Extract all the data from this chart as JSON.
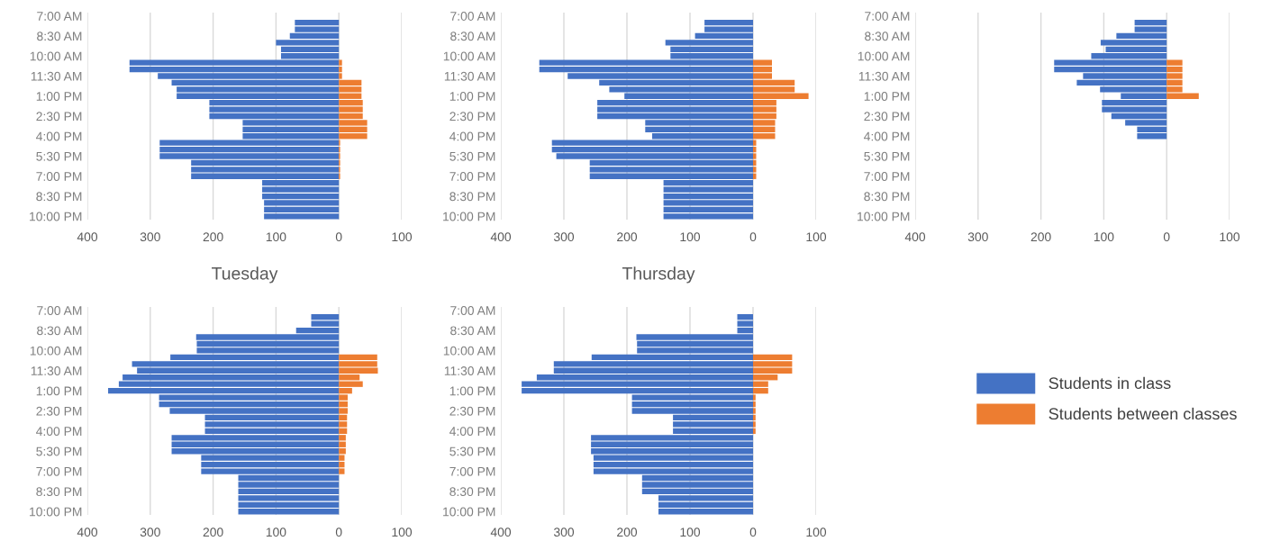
{
  "chart_data": [
    {
      "type": "bar",
      "orientation": "horizontal",
      "stacked": true,
      "categories": [
        "7:00 AM",
        null,
        null,
        "8:30 AM",
        null,
        null,
        "10:00 AM",
        null,
        null,
        "11:30 AM",
        null,
        null,
        "1:00 PM",
        null,
        null,
        "2:30 PM",
        null,
        null,
        "4:00 PM",
        null,
        null,
        "5:30 PM",
        null,
        null,
        "7:00 PM",
        null,
        null,
        "8:30 PM",
        null,
        null,
        "10:00 PM"
      ],
      "series": [
        {
          "color": "#4472c4",
          "values": [
            null,
            -70,
            -70,
            -78,
            -100,
            -92,
            -92,
            -333,
            -333,
            -288,
            -266,
            -258,
            -258,
            -206,
            -206,
            -206,
            -153,
            -153,
            -153,
            -285,
            -285,
            -285,
            -235,
            -235,
            -235,
            -122,
            -122,
            -122,
            -119,
            -119,
            -119
          ]
        },
        {
          "color": "#ed7d31",
          "values": [
            null,
            0,
            0,
            0,
            0,
            0,
            0,
            5,
            5,
            5,
            36,
            36,
            36,
            38,
            38,
            38,
            45,
            45,
            45,
            2,
            2,
            2,
            2,
            2,
            2,
            0,
            0,
            0,
            0,
            0,
            0
          ]
        }
      ],
      "xlim": [
        -400,
        100
      ],
      "xticks": [
        {
          "value": -400,
          "label": "400"
        },
        {
          "value": -300,
          "label": "300"
        },
        {
          "value": -200,
          "label": "200"
        },
        {
          "value": -100,
          "label": "100"
        },
        0,
        100
      ],
      "grid": "x"
    },
    {
      "type": "bar",
      "orientation": "horizontal",
      "categories": [
        "7:00 AM",
        null,
        null,
        "8:30 AM",
        null,
        null,
        "10:00 AM",
        null,
        null,
        "11:30 AM",
        null,
        null,
        "1:00 PM",
        null,
        null,
        "2:30 PM",
        null,
        null,
        "4:00 PM",
        null,
        null,
        "5:30 PM",
        null,
        null,
        "7:00 PM",
        null,
        null,
        "8:30 PM",
        null,
        null,
        "10:00 PM"
      ],
      "series": [
        {
          "color": "#4472c4",
          "values": [
            null,
            -77,
            -77,
            -92,
            -139,
            -131,
            -131,
            -339,
            -339,
            -294,
            -244,
            -228,
            -204,
            -247,
            -247,
            -247,
            -171,
            -171,
            -160,
            -319,
            -319,
            -312,
            -259,
            -259,
            -259,
            -142,
            -142,
            -142,
            -142,
            -142,
            -142
          ]
        },
        {
          "color": "#ed7d31",
          "values": [
            null,
            0,
            0,
            0,
            0,
            0,
            0,
            30,
            30,
            30,
            66,
            66,
            88,
            37,
            37,
            37,
            35,
            35,
            35,
            5,
            5,
            5,
            5,
            5,
            5,
            0,
            0,
            0,
            0,
            0,
            0
          ]
        }
      ],
      "stacked": true,
      "xlim": [
        -400,
        100
      ],
      "xticks": [
        {
          "value": -400,
          "label": "400"
        },
        {
          "value": -300,
          "label": "300"
        },
        {
          "value": -200,
          "label": "200"
        },
        {
          "value": -100,
          "label": "100"
        },
        0,
        100
      ],
      "grid": "x"
    },
    {
      "type": "bar",
      "orientation": "horizontal",
      "categories": [
        "7:00 AM",
        null,
        null,
        "8:30 AM",
        null,
        null,
        "10:00 AM",
        null,
        null,
        "11:30 AM",
        null,
        null,
        "1:00 PM",
        null,
        null,
        "2:30 PM",
        null,
        null,
        "4:00 PM",
        null,
        null,
        "5:30 PM",
        null,
        null,
        "7:00 PM",
        null,
        null,
        "8:30 PM",
        null,
        null,
        "10:00 PM"
      ],
      "series": [
        {
          "color": "#4472c4",
          "values": [
            null,
            -51,
            -51,
            -80,
            -105,
            -97,
            -120,
            -179,
            -179,
            -133,
            -143,
            -106,
            -73,
            -103,
            -103,
            -88,
            -66,
            -47,
            -47,
            null,
            null,
            null,
            null,
            null,
            null,
            null,
            null,
            null,
            null,
            null,
            null
          ]
        },
        {
          "color": "#ed7d31",
          "values": [
            null,
            0,
            0,
            0,
            0,
            0,
            0,
            25,
            25,
            25,
            25,
            25,
            51,
            0,
            0,
            0,
            0,
            0,
            0,
            null,
            null,
            null,
            null,
            null,
            null,
            null,
            null,
            null,
            null,
            null,
            null
          ]
        }
      ],
      "stacked": true,
      "xlim": [
        -400,
        100
      ],
      "xticks": [
        {
          "value": -400,
          "label": "400"
        },
        {
          "value": -300,
          "label": "300"
        },
        {
          "value": -200,
          "label": "200"
        },
        {
          "value": -100,
          "label": "100"
        },
        0,
        100
      ],
      "grid": "x"
    },
    {
      "type": "bar",
      "orientation": "horizontal",
      "stacked": true,
      "title": "Tuesday",
      "categories": [
        "7:00 AM",
        null,
        null,
        "8:30 AM",
        null,
        null,
        "10:00 AM",
        null,
        null,
        "11:30 AM",
        null,
        null,
        "1:00 PM",
        null,
        null,
        "2:30 PM",
        null,
        null,
        "4:00 PM",
        null,
        null,
        "5:30 PM",
        null,
        null,
        "7:00 PM",
        null,
        null,
        "8:30 PM",
        null,
        null,
        "10:00 PM"
      ],
      "series": [
        {
          "color": "#4472c4",
          "values": [
            null,
            -44,
            -44,
            -68,
            -227,
            -226,
            -226,
            -268,
            -329,
            -321,
            -344,
            -350,
            -367,
            -286,
            -286,
            -269,
            -213,
            -213,
            -213,
            -266,
            -266,
            -266,
            -219,
            -219,
            -219,
            -160,
            -160,
            -160,
            -160,
            -160,
            -160
          ]
        },
        {
          "color": "#ed7d31",
          "values": [
            null,
            0,
            0,
            0,
            0,
            0,
            0,
            61,
            61,
            62,
            33,
            38,
            21,
            14,
            14,
            14,
            13,
            13,
            13,
            11,
            11,
            11,
            9,
            9,
            9,
            0,
            0,
            0,
            0,
            0,
            0
          ]
        }
      ],
      "xlim": [
        -400,
        100
      ],
      "xticks": [
        {
          "value": -400,
          "label": "400"
        },
        {
          "value": -300,
          "label": "300"
        },
        {
          "value": -200,
          "label": "200"
        },
        {
          "value": -100,
          "label": "100"
        },
        0,
        100
      ],
      "grid": "x"
    },
    {
      "type": "bar",
      "orientation": "horizontal",
      "stacked": true,
      "title": "Thursday",
      "legend": "right",
      "categories": [
        "7:00 AM",
        null,
        null,
        "8:30 AM",
        null,
        null,
        "10:00 AM",
        null,
        null,
        "11:30 AM",
        null,
        null,
        "1:00 PM",
        null,
        null,
        "2:30 PM",
        null,
        null,
        "4:00 PM",
        null,
        null,
        "5:30 PM",
        null,
        null,
        "7:00 PM",
        null,
        null,
        "8:30 PM",
        null,
        null,
        "10:00 PM"
      ],
      "series": [
        {
          "name": "Students in class",
          "color": "#4472c4",
          "values": [
            null,
            -25,
            -25,
            -25,
            -185,
            -184,
            -184,
            -256,
            -316,
            -316,
            -343,
            -367,
            -367,
            -192,
            -192,
            -192,
            -127,
            -127,
            -127,
            -257,
            -257,
            -257,
            -253,
            -253,
            -253,
            -176,
            -176,
            -176,
            -150,
            -150,
            -150
          ]
        },
        {
          "name": "Students between classes",
          "color": "#ed7d31",
          "values": [
            null,
            0,
            0,
            0,
            0,
            0,
            0,
            62,
            62,
            62,
            39,
            24,
            24,
            4,
            4,
            4,
            4,
            4,
            4,
            0,
            0,
            0,
            0,
            0,
            0,
            0,
            0,
            0,
            0,
            0,
            0
          ]
        }
      ],
      "xlim": [
        -400,
        100
      ],
      "xticks": [
        {
          "value": -400,
          "label": "400"
        },
        {
          "value": -300,
          "label": "300"
        },
        {
          "value": -200,
          "label": "200"
        },
        {
          "value": -100,
          "label": "100"
        },
        0,
        100
      ],
      "grid": "x"
    }
  ]
}
